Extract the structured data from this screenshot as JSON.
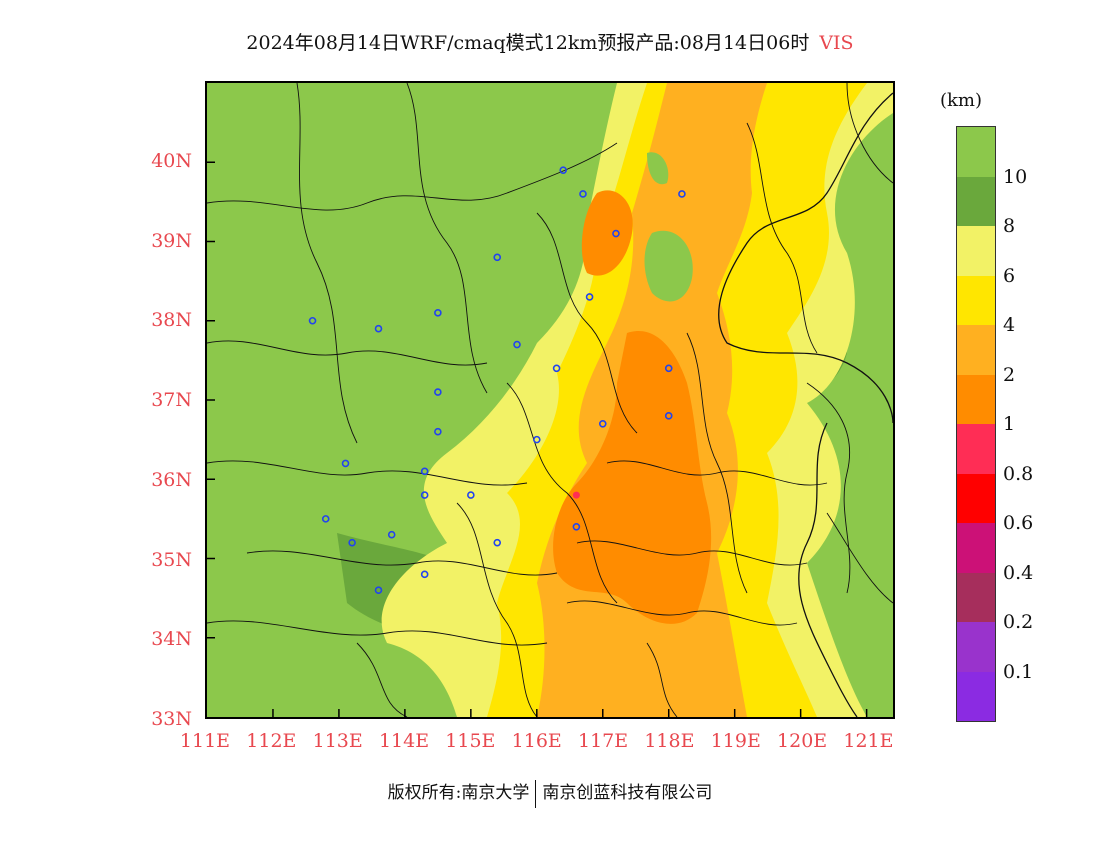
{
  "title": {
    "main": "2024年08月14日WRF/cmaq模式12km预报产品:08月14日06时",
    "variable": "VIS"
  },
  "latitude_labels": [
    "40N",
    "39N",
    "38N",
    "37N",
    "36N",
    "35N",
    "34N",
    "33N"
  ],
  "longitude_labels": [
    "111E",
    "112E",
    "113E",
    "114E",
    "115E",
    "116E",
    "117E",
    "118E",
    "119E",
    "120E",
    "121E"
  ],
  "legend": {
    "unit": "(km)",
    "labels": [
      "10",
      "8",
      "6",
      "4",
      "2",
      "1",
      "0.8",
      "0.6",
      "0.4",
      "0.2",
      "0.1"
    ],
    "colors": [
      "#8cc84b",
      "#6aa83c",
      "#f2f266",
      "#ffe600",
      "#ffb020",
      "#ff8c00",
      "#ff2d55",
      "#ff0000",
      "#cc1177",
      "#a62e5c",
      "#9933cc",
      "#8b2be2"
    ]
  },
  "footer": {
    "copyright": "版权所有:南京大学",
    "company": "南京创蓝科技有限公司"
  },
  "colors": {
    "axis_label": "#e8484f",
    "vis_above_10": "#8cc84b",
    "vis_8_10": "#6aa83c",
    "vis_6_8": "#f2f266",
    "vis_4_6": "#ffe600",
    "vis_2_4": "#ffb020",
    "vis_1_2": "#ff8c00"
  },
  "stations": [
    {
      "lon": 116.4,
      "lat": 39.9
    },
    {
      "lon": 116.7,
      "lat": 39.6
    },
    {
      "lon": 117.2,
      "lat": 39.1
    },
    {
      "lon": 118.2,
      "lat": 39.6
    },
    {
      "lon": 115.4,
      "lat": 38.8
    },
    {
      "lon": 116.8,
      "lat": 38.3
    },
    {
      "lon": 112.6,
      "lat": 38.0
    },
    {
      "lon": 113.6,
      "lat": 37.9
    },
    {
      "lon": 114.5,
      "lat": 38.1
    },
    {
      "lon": 115.7,
      "lat": 37.7
    },
    {
      "lon": 116.3,
      "lat": 37.4
    },
    {
      "lon": 118.0,
      "lat": 37.4
    },
    {
      "lon": 114.5,
      "lat": 37.1
    },
    {
      "lon": 118.0,
      "lat": 36.8
    },
    {
      "lon": 117.0,
      "lat": 36.7
    },
    {
      "lon": 114.5,
      "lat": 36.6
    },
    {
      "lon": 116.0,
      "lat": 36.5
    },
    {
      "lon": 113.1,
      "lat": 36.2
    },
    {
      "lon": 114.3,
      "lat": 36.1
    },
    {
      "lon": 114.3,
      "lat": 35.8
    },
    {
      "lon": 115.0,
      "lat": 35.8
    },
    {
      "lon": 112.8,
      "lat": 35.5
    },
    {
      "lon": 116.6,
      "lat": 35.4
    },
    {
      "lon": 113.2,
      "lat": 35.2
    },
    {
      "lon": 113.8,
      "lat": 35.3
    },
    {
      "lon": 115.4,
      "lat": 35.2
    },
    {
      "lon": 114.3,
      "lat": 34.8
    },
    {
      "lon": 113.6,
      "lat": 34.6
    }
  ],
  "highlight_station": {
    "lon": 116.6,
    "lat": 35.8,
    "color": "#ff2d55"
  }
}
